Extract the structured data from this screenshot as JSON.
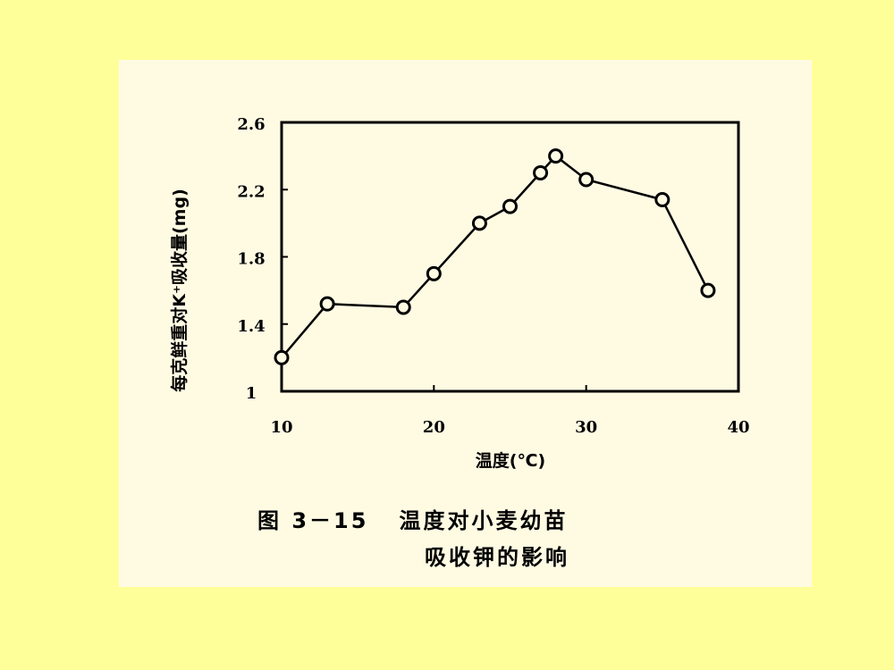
{
  "chart_data": {
    "type": "line",
    "xlabel": "温度(℃)",
    "ylabel": "每克鲜重对K⁺吸收量(mg)",
    "xlim": [
      10,
      40
    ],
    "ylim": [
      1,
      2.6
    ],
    "x_ticks": [
      "10",
      "20",
      "30",
      "40"
    ],
    "y_ticks": [
      "1",
      "1.4",
      "1.8",
      "2.2",
      "2.6"
    ],
    "grid": false,
    "legend": "none",
    "line_color": "#000000",
    "marker": "open-circle",
    "series": [
      {
        "x": [
          10,
          13,
          18,
          20,
          23,
          25,
          27,
          28,
          30,
          35,
          38
        ],
        "y": [
          1.2,
          1.52,
          1.5,
          1.7,
          2.0,
          2.1,
          2.3,
          2.4,
          2.26,
          2.14,
          1.6
        ]
      }
    ]
  },
  "caption": {
    "line1": "图 3－15   温度对小麦幼苗",
    "line2": "吸收钾的影响"
  },
  "colors": {
    "page_background": "#ffff99",
    "panel_background": "#fffbe3"
  }
}
